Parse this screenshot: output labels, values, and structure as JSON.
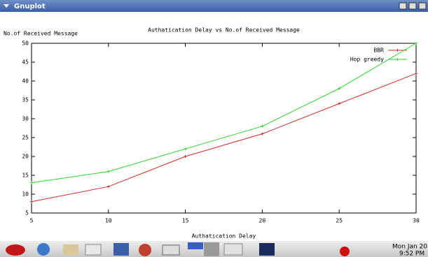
{
  "window": {
    "title": "Gnuplot"
  },
  "chart_data": {
    "type": "line",
    "title": "Authatication Delay vs  No.of Received Message",
    "x_label": "Authatication Delay",
    "y_label": "No.of Received Message",
    "x": [
      5,
      10,
      15,
      20,
      25,
      30
    ],
    "series": [
      {
        "name": "BBR",
        "color": "#d42a2a",
        "values": [
          8,
          12,
          20,
          26,
          34,
          42
        ]
      },
      {
        "name": "Hop greedy",
        "color": "#2ad42a",
        "values": [
          13,
          16,
          22,
          28,
          38,
          50
        ]
      }
    ],
    "xlim": [
      5,
      30
    ],
    "xticks": [
      5,
      10,
      15,
      20,
      25,
      30
    ],
    "ylim": [
      5,
      50
    ],
    "yticks": [
      5,
      10,
      15,
      20,
      25,
      30,
      35,
      40,
      45,
      50
    ],
    "legend": "top-right"
  },
  "taskbar": {
    "clock": [
      "Mon Jan 20",
      "9:52 PM"
    ]
  }
}
